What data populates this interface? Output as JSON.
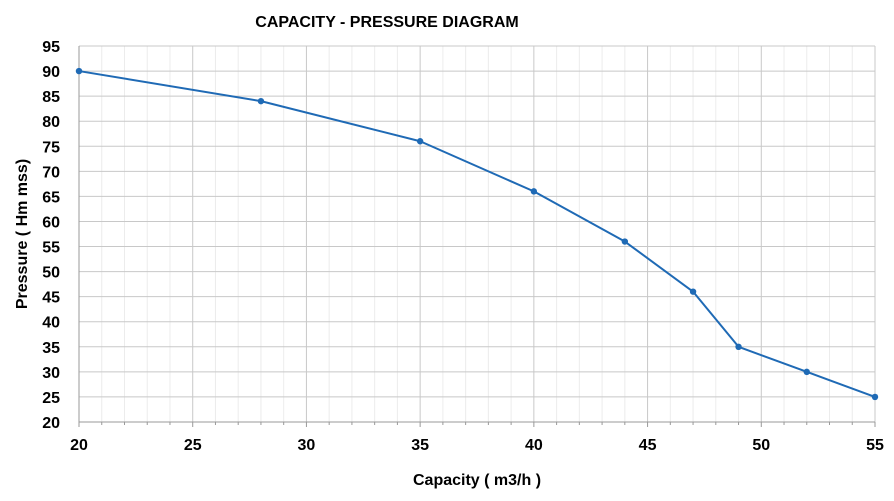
{
  "chart_data": {
    "type": "line",
    "title": "CAPACITY - PRESSURE DIAGRAM",
    "xlabel": "Capacity ( m3/h )",
    "ylabel": "Pressure ( Hm mss)",
    "xlim": [
      20,
      55
    ],
    "ylim": [
      20,
      95
    ],
    "x_ticks": [
      20,
      25,
      30,
      35,
      40,
      45,
      50,
      55
    ],
    "y_ticks": [
      20,
      25,
      30,
      35,
      40,
      45,
      50,
      55,
      60,
      65,
      70,
      75,
      80,
      85,
      90,
      95
    ],
    "grid": true,
    "legend": "none",
    "series": [
      {
        "x": [
          20,
          28,
          35,
          40,
          44,
          47,
          49,
          52,
          55
        ],
        "y": [
          90,
          84,
          76,
          66,
          56,
          46,
          35,
          30,
          25
        ],
        "color": "#1f6ab5"
      }
    ]
  }
}
